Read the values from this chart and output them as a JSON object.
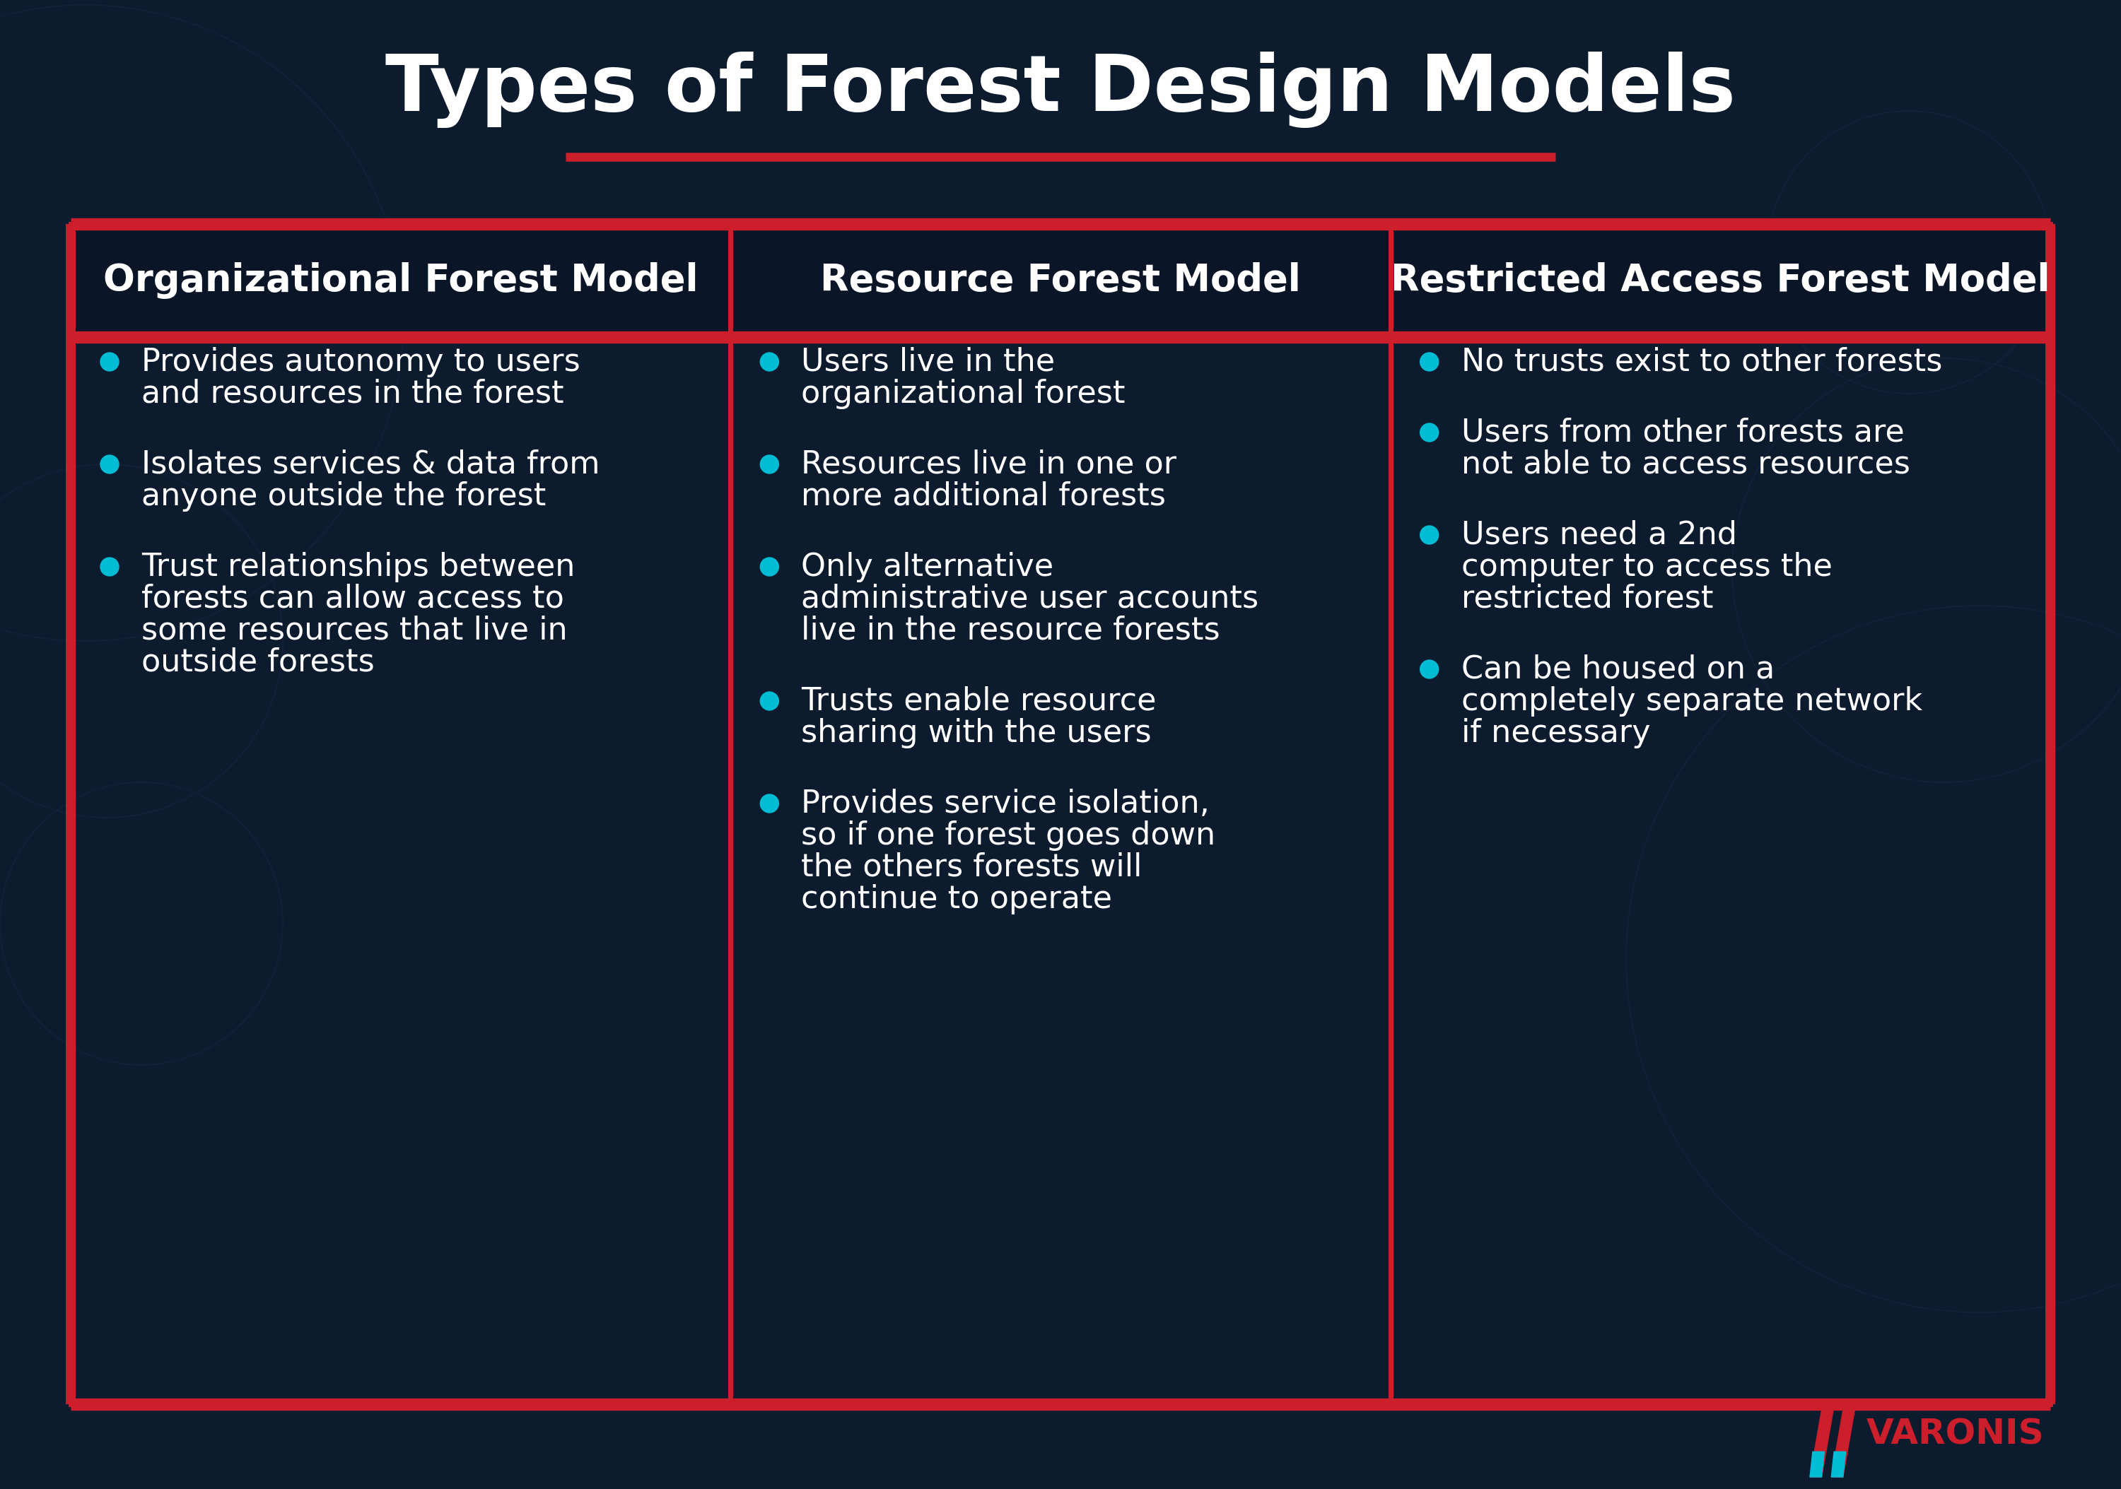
{
  "title": "Types of Forest Design Models",
  "background_color": "#0d1b2e",
  "title_color": "#ffffff",
  "title_fontsize": 80,
  "underline_color": "#cc1e2b",
  "table_border_color": "#cc1e2b",
  "table_bg_color": "#0d1b2e",
  "header_bg_color": "#0a1628",
  "header_text_color": "#ffffff",
  "header_fontsize": 38,
  "body_text_color": "#ffffff",
  "body_fontsize": 32,
  "bullet_color": "#00bcd4",
  "columns": [
    {
      "header": "Organizational Forest Model",
      "bullets": [
        "Provides autonomy to users\nand resources in the forest",
        "Isolates services & data from\nanyone outside the forest",
        "Trust relationships between\nforests can allow access to\nsome resources that live in\noutside forests"
      ]
    },
    {
      "header": "Resource Forest Model",
      "bullets": [
        "Users live in the\norganizational forest",
        "Resources live in one or\nmore additional forests",
        "Only alternative\nadministrative user accounts\nlive in the resource forests",
        "Trusts enable resource\nsharing with the users",
        "Provides service isolation,\nso if one forest goes down\nthe others forests will\ncontinue to operate"
      ]
    },
    {
      "header": "Restricted Access Forest Model",
      "bullets": [
        "No trusts exist to other forests",
        "Users from other forests are\nnot able to access resources",
        "Users need a 2nd\ncomputer to access the\nrestricted forest",
        "Can be housed on a\ncompletely separate network\nif necessary"
      ]
    }
  ],
  "varonis_logo_color": "#cc1e2b",
  "varonis_text": "VARONIS",
  "varonis_accent_color": "#00bcd4",
  "deco_circle_color": "#1a2d4a",
  "border_linewidth": 5
}
